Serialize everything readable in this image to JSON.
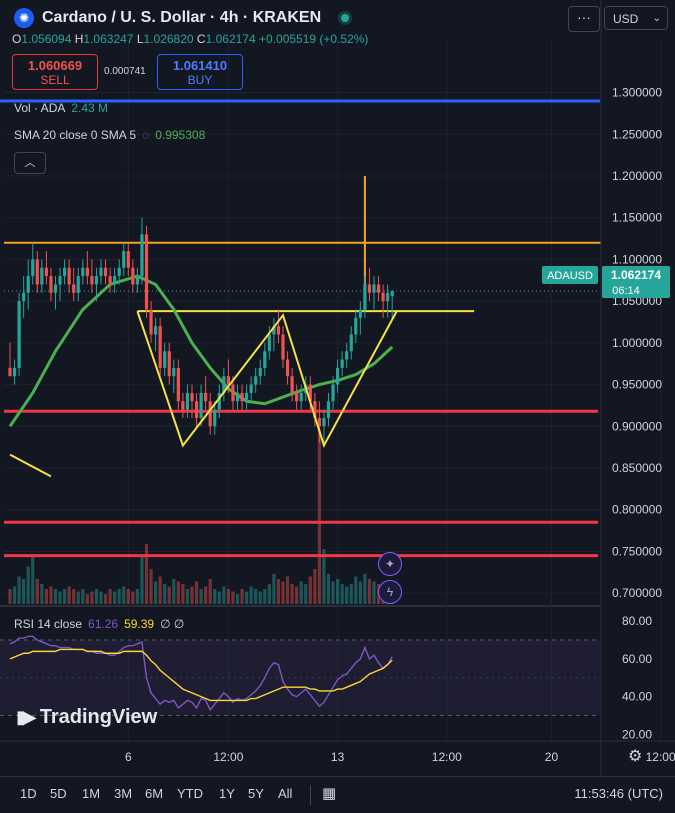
{
  "header": {
    "title": "Cardano / U. S. Dollar · 4h · KRAKEN",
    "ohlc": {
      "o": "1.056094",
      "h": "1.063247",
      "l": "1.026820",
      "c": "1.062174",
      "change": "+0.005519 (+0.52%)"
    },
    "sell": {
      "price": "1.060669",
      "label": "SELL"
    },
    "buy": {
      "price": "1.061410",
      "label": "BUY"
    },
    "spread": "0.000741",
    "menu": "···",
    "currency": "USD"
  },
  "indicators": {
    "vol": {
      "label": "Vol · ADA",
      "value": "2.43 M"
    },
    "sma": {
      "label": "SMA 20 close 0 SMA 5",
      "value": "0.995308"
    },
    "rsi": {
      "label": "RSI 14 close",
      "v1": "61.26",
      "v2": "59.39",
      "v3": "∅ ∅"
    }
  },
  "price_label": {
    "symbol": "ADAUSD",
    "price": "1.062174",
    "countdown": "06:14"
  },
  "logo": "TradingView",
  "timeframes": [
    "1D",
    "5D",
    "1M",
    "3M",
    "6M",
    "YTD",
    "1Y",
    "5Y",
    "All"
  ],
  "clock": "11:53:46 (UTC)",
  "colors": {
    "up": "#26a69a",
    "down": "#ef5350",
    "sma": "#4caf50",
    "level": "#f23645",
    "pattern": "#f5e243",
    "orange": "#f5a623",
    "rsi": "#7e57c2",
    "rsi_ma": "#fdd835",
    "blue_line": "#2962ff"
  },
  "chart_data": {
    "type": "candlestick",
    "y_ticks": [
      "1.300000",
      "1.250000",
      "1.200000",
      "1.150000",
      "1.100000",
      "1.050000",
      "1.000000",
      "0.950000",
      "0.900000",
      "0.850000",
      "0.800000",
      "0.750000",
      "0.700000"
    ],
    "y_tick_values": [
      1.3,
      1.25,
      1.2,
      1.15,
      1.1,
      1.05,
      1.0,
      0.95,
      0.9,
      0.85,
      0.8,
      0.75,
      0.7
    ],
    "ylim": [
      0.687,
      1.363
    ],
    "x_ticks": [
      {
        "label": "6",
        "i": 26
      },
      {
        "label": "12:00",
        "i": 48
      },
      {
        "label": "13",
        "i": 72
      },
      {
        "label": "12:00",
        "i": 96
      },
      {
        "label": "20",
        "i": 119
      },
      {
        "label": "12:00",
        "i": 143
      }
    ],
    "candles": [
      [
        0.97,
        1.0,
        0.96,
        0.96
      ],
      [
        0.96,
        0.98,
        0.95,
        0.97
      ],
      [
        0.97,
        1.06,
        0.96,
        1.05
      ],
      [
        1.05,
        1.08,
        1.03,
        1.06
      ],
      [
        1.06,
        1.1,
        1.04,
        1.08
      ],
      [
        1.08,
        1.12,
        1.07,
        1.1
      ],
      [
        1.1,
        1.11,
        1.06,
        1.07
      ],
      [
        1.07,
        1.1,
        1.06,
        1.09
      ],
      [
        1.09,
        1.11,
        1.07,
        1.08
      ],
      [
        1.08,
        1.09,
        1.05,
        1.06
      ],
      [
        1.06,
        1.08,
        1.04,
        1.07
      ],
      [
        1.07,
        1.09,
        1.05,
        1.08
      ],
      [
        1.08,
        1.1,
        1.07,
        1.09
      ],
      [
        1.09,
        1.1,
        1.06,
        1.07
      ],
      [
        1.07,
        1.09,
        1.05,
        1.06
      ],
      [
        1.06,
        1.09,
        1.05,
        1.08
      ],
      [
        1.08,
        1.1,
        1.07,
        1.09
      ],
      [
        1.09,
        1.11,
        1.07,
        1.08
      ],
      [
        1.08,
        1.1,
        1.06,
        1.07
      ],
      [
        1.07,
        1.09,
        1.05,
        1.08
      ],
      [
        1.08,
        1.1,
        1.07,
        1.09
      ],
      [
        1.09,
        1.1,
        1.07,
        1.08
      ],
      [
        1.08,
        1.09,
        1.06,
        1.07
      ],
      [
        1.07,
        1.09,
        1.06,
        1.08
      ],
      [
        1.08,
        1.1,
        1.07,
        1.09
      ],
      [
        1.09,
        1.12,
        1.08,
        1.11
      ],
      [
        1.11,
        1.12,
        1.08,
        1.09
      ],
      [
        1.09,
        1.1,
        1.06,
        1.07
      ],
      [
        1.07,
        1.09,
        1.06,
        1.08
      ],
      [
        1.08,
        1.15,
        1.07,
        1.13
      ],
      [
        1.13,
        1.14,
        1.03,
        1.04
      ],
      [
        1.04,
        1.05,
        1.0,
        1.01
      ],
      [
        1.01,
        1.03,
        0.99,
        1.02
      ],
      [
        1.02,
        1.03,
        0.96,
        0.97
      ],
      [
        0.97,
        1.0,
        0.96,
        0.99
      ],
      [
        0.99,
        1.0,
        0.95,
        0.96
      ],
      [
        0.96,
        0.98,
        0.94,
        0.97
      ],
      [
        0.97,
        0.98,
        0.92,
        0.93
      ],
      [
        0.93,
        0.94,
        0.91,
        0.92
      ],
      [
        0.92,
        0.95,
        0.91,
        0.94
      ],
      [
        0.94,
        0.95,
        0.91,
        0.93
      ],
      [
        0.93,
        0.94,
        0.9,
        0.91
      ],
      [
        0.91,
        0.95,
        0.9,
        0.94
      ],
      [
        0.94,
        0.96,
        0.92,
        0.93
      ],
      [
        0.93,
        0.94,
        0.89,
        0.9
      ],
      [
        0.9,
        0.93,
        0.89,
        0.92
      ],
      [
        0.92,
        0.95,
        0.91,
        0.94
      ],
      [
        0.94,
        0.97,
        0.93,
        0.96
      ],
      [
        0.96,
        0.98,
        0.94,
        0.95
      ],
      [
        0.95,
        0.96,
        0.92,
        0.93
      ],
      [
        0.93,
        0.95,
        0.92,
        0.94
      ],
      [
        0.94,
        0.95,
        0.92,
        0.93
      ],
      [
        0.93,
        0.95,
        0.92,
        0.94
      ],
      [
        0.94,
        0.96,
        0.93,
        0.95
      ],
      [
        0.95,
        0.97,
        0.94,
        0.96
      ],
      [
        0.96,
        0.98,
        0.95,
        0.97
      ],
      [
        0.97,
        1.0,
        0.96,
        0.99
      ],
      [
        0.99,
        1.02,
        0.98,
        1.01
      ],
      [
        1.01,
        1.03,
        0.99,
        1.02
      ],
      [
        1.02,
        1.04,
        1.0,
        1.01
      ],
      [
        1.01,
        1.02,
        0.97,
        0.98
      ],
      [
        0.98,
        0.99,
        0.95,
        0.96
      ],
      [
        0.96,
        0.97,
        0.93,
        0.94
      ],
      [
        0.94,
        0.95,
        0.92,
        0.93
      ],
      [
        0.93,
        0.95,
        0.92,
        0.94
      ],
      [
        0.94,
        0.96,
        0.93,
        0.95
      ],
      [
        0.95,
        0.96,
        0.92,
        0.93
      ],
      [
        0.93,
        0.94,
        0.9,
        0.91
      ],
      [
        0.91,
        0.93,
        0.88,
        0.9
      ],
      [
        0.9,
        0.92,
        0.88,
        0.91
      ],
      [
        0.91,
        0.94,
        0.9,
        0.93
      ],
      [
        0.93,
        0.96,
        0.92,
        0.95
      ],
      [
        0.95,
        0.98,
        0.94,
        0.97
      ],
      [
        0.97,
        0.99,
        0.96,
        0.98
      ],
      [
        0.98,
        1.0,
        0.97,
        0.99
      ],
      [
        0.99,
        1.02,
        0.98,
        1.01
      ],
      [
        1.01,
        1.04,
        1.0,
        1.03
      ],
      [
        1.03,
        1.05,
        1.01,
        1.04
      ],
      [
        1.04,
        1.08,
        1.03,
        1.07
      ],
      [
        1.07,
        1.09,
        1.05,
        1.06
      ],
      [
        1.06,
        1.08,
        1.04,
        1.07
      ],
      [
        1.07,
        1.08,
        1.05,
        1.06
      ],
      [
        1.06,
        1.07,
        1.03,
        1.05
      ],
      [
        1.05,
        1.07,
        1.03,
        1.06
      ],
      [
        1.056094,
        1.063247,
        1.02682,
        1.062174
      ]
    ],
    "volume_rel": [
      0.3,
      0.35,
      0.55,
      0.5,
      0.75,
      0.95,
      0.5,
      0.4,
      0.3,
      0.35,
      0.3,
      0.25,
      0.3,
      0.35,
      0.3,
      0.25,
      0.3,
      0.2,
      0.25,
      0.3,
      0.25,
      0.2,
      0.3,
      0.25,
      0.3,
      0.35,
      0.3,
      0.25,
      0.3,
      0.95,
      1.2,
      0.7,
      0.45,
      0.55,
      0.4,
      0.35,
      0.5,
      0.45,
      0.4,
      0.3,
      0.35,
      0.45,
      0.3,
      0.35,
      0.5,
      0.3,
      0.25,
      0.35,
      0.3,
      0.25,
      0.2,
      0.3,
      0.25,
      0.35,
      0.3,
      0.25,
      0.3,
      0.4,
      0.6,
      0.5,
      0.45,
      0.55,
      0.4,
      0.35,
      0.45,
      0.4,
      0.55,
      0.7,
      3.5,
      1.1,
      0.6,
      0.45,
      0.5,
      0.4,
      0.35,
      0.4,
      0.55,
      0.45,
      0.6,
      0.5,
      0.45,
      0.4,
      0.35,
      0.4,
      0.3
    ],
    "sma": [
      [
        0,
        0.9
      ],
      [
        5,
        0.94
      ],
      [
        10,
        0.99
      ],
      [
        16,
        1.04
      ],
      [
        22,
        1.07
      ],
      [
        28,
        1.08
      ],
      [
        32,
        1.07
      ],
      [
        36,
        1.04
      ],
      [
        40,
        1.0
      ],
      [
        44,
        0.97
      ],
      [
        48,
        0.945
      ],
      [
        52,
        0.93
      ],
      [
        56,
        0.927
      ],
      [
        60,
        0.935
      ],
      [
        64,
        0.943
      ],
      [
        68,
        0.95
      ],
      [
        72,
        0.955
      ],
      [
        76,
        0.962
      ],
      [
        80,
        0.975
      ],
      [
        84,
        0.995
      ]
    ],
    "levels": [
      {
        "price": 0.918,
        "color": "red",
        "to": "right"
      },
      {
        "price": 0.785,
        "color": "red",
        "to": "right"
      },
      {
        "price": 0.745,
        "color": "red",
        "to": "right"
      },
      {
        "price": 1.12,
        "color": "orange",
        "to": 130
      },
      {
        "price": 1.038,
        "color": "yellow",
        "from": 28,
        "to": 102
      }
    ],
    "orange_vertical": {
      "i": 78,
      "from": 1.038,
      "to": 1.2
    },
    "pattern": [
      [
        28,
        1.038
      ],
      [
        38,
        0.877
      ],
      [
        60,
        1.033
      ],
      [
        69,
        0.877
      ],
      [
        85,
        1.038
      ]
    ],
    "pattern_tail": [
      [
        0,
        0.866
      ],
      [
        9,
        0.84
      ]
    ],
    "rsi": {
      "ylim": [
        17,
        87
      ],
      "ticks": [
        "80.00",
        "60.00",
        "40.00",
        "20.00"
      ],
      "tick_values": [
        80,
        60,
        40,
        20
      ],
      "band": [
        30,
        70
      ],
      "values": [
        68,
        69,
        71,
        71,
        72,
        72,
        70,
        69,
        68,
        67,
        67,
        66,
        66,
        66,
        65,
        65,
        65,
        64,
        64,
        63,
        63,
        63,
        62,
        62,
        64,
        66,
        67,
        67,
        68,
        69,
        50,
        42,
        39,
        36,
        38,
        37,
        38,
        34,
        36,
        38,
        37,
        34,
        39,
        38,
        33,
        36,
        39,
        42,
        40,
        37,
        39,
        38,
        39,
        41,
        43,
        46,
        50,
        55,
        58,
        57,
        48,
        44,
        41,
        40,
        42,
        44,
        41,
        38,
        35,
        37,
        41,
        45,
        49,
        51,
        52,
        55,
        58,
        60,
        66,
        60,
        62,
        58,
        55,
        57,
        61.26
      ],
      "ma": [
        60,
        61,
        62,
        63,
        63,
        64,
        64,
        64,
        64,
        64,
        64,
        65,
        65,
        65,
        65,
        65,
        65,
        64,
        64,
        64,
        64,
        63,
        63,
        63,
        63,
        64,
        64,
        64,
        64,
        64,
        62,
        59,
        57,
        54,
        52,
        50,
        48,
        46,
        44,
        43,
        42,
        41,
        40,
        39,
        38,
        38,
        38,
        38,
        38,
        38,
        38,
        38,
        38,
        39,
        39,
        40,
        41,
        42,
        43,
        44,
        45,
        45,
        45,
        45,
        45,
        45,
        44,
        44,
        43,
        43,
        43,
        43,
        44,
        44,
        45,
        46,
        47,
        48,
        50,
        52,
        53,
        54,
        55,
        57,
        59.39
      ]
    }
  }
}
